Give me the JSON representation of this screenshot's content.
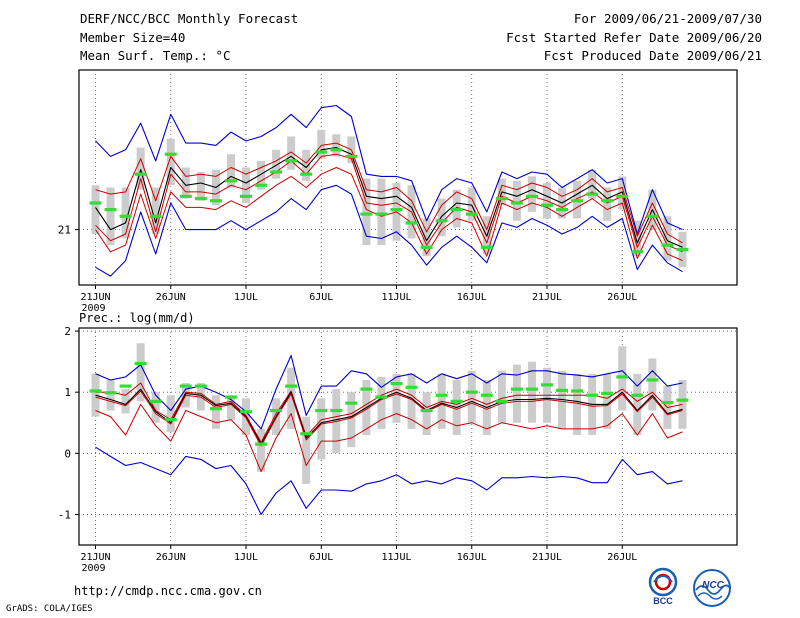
{
  "header": {
    "title": "DERF/NCC/BCC Monthly Forecast",
    "member_size": "Member Size=40",
    "variable": "Mean Surf. Temp.: °C",
    "period": "For 2009/06/21-2009/07/30",
    "start_date": "Fcst Started Refer Date 2009/06/20",
    "produced_date": "Fcst Produced Date 2009/06/21"
  },
  "footer": {
    "url": "http://cmdp.ncc.cma.gov.cn",
    "credit": "GrADS: COLA/IGES",
    "logo_bcc": "BCC",
    "logo_ncc": "NCC"
  },
  "colors": {
    "max_line": "#0000cc",
    "min_line": "#cc0000",
    "mean_line": "#000000",
    "band_lines": "#cc0000",
    "spread_bar": "#cccccc",
    "reference": "#33dd33",
    "grid": "#555555"
  },
  "chart_data": [
    {
      "type": "line",
      "title": "Mean Surf. Temp.: °C",
      "xlabel": "",
      "ylabel": "",
      "x_ticks": [
        "21JUN",
        "26JUN",
        "1JUL",
        "6JUL",
        "11JUL",
        "16JUL",
        "21JUL",
        "26JUL"
      ],
      "x_tick_year": "2009",
      "y_ticks": [
        21
      ],
      "ylim": [
        18.5,
        28.2
      ],
      "x": [
        1,
        2,
        3,
        4,
        5,
        6,
        7,
        8,
        9,
        10,
        11,
        12,
        13,
        14,
        15,
        16,
        17,
        18,
        19,
        20,
        21,
        22,
        23,
        24,
        25,
        26,
        27,
        28,
        29,
        30,
        31,
        32,
        33,
        34,
        35,
        36,
        37,
        38,
        39,
        40
      ],
      "series": [
        {
          "name": "max",
          "values": [
            25.0,
            24.3,
            24.6,
            25.8,
            24.1,
            26.2,
            24.9,
            24.9,
            24.8,
            25.4,
            25.0,
            25.2,
            25.6,
            26.2,
            25.6,
            26.5,
            26.6,
            26.1,
            23.5,
            23.4,
            23.4,
            23.2,
            21.4,
            22.8,
            23.3,
            23.1,
            21.8,
            23.6,
            23.3,
            23.6,
            23.5,
            22.9,
            23.3,
            23.7,
            23.1,
            23.3,
            20.8,
            22.8,
            21.3,
            21.0
          ]
        },
        {
          "name": "band_upper",
          "values": [
            22.8,
            22.6,
            22.7,
            24.2,
            22.3,
            24.3,
            23.4,
            23.5,
            23.4,
            23.8,
            23.5,
            23.8,
            24.1,
            24.5,
            24.0,
            24.8,
            24.9,
            24.6,
            22.8,
            22.7,
            22.9,
            22.3,
            20.9,
            22.1,
            22.7,
            22.4,
            21.0,
            23.0,
            22.8,
            23.1,
            22.9,
            22.5,
            22.8,
            23.3,
            22.7,
            22.9,
            20.7,
            22.2,
            20.8,
            20.4
          ]
        },
        {
          "name": "mean",
          "values": [
            22.0,
            21.0,
            21.3,
            23.7,
            21.3,
            23.8,
            23.0,
            23.1,
            22.9,
            23.4,
            23.1,
            23.5,
            23.9,
            24.3,
            23.8,
            24.6,
            24.7,
            24.4,
            22.5,
            22.4,
            22.5,
            22.0,
            20.5,
            21.6,
            22.2,
            22.1,
            20.7,
            22.7,
            22.5,
            22.8,
            22.5,
            22.2,
            22.6,
            23.0,
            22.4,
            22.7,
            20.4,
            21.9,
            20.5,
            20.2
          ]
        },
        {
          "name": "band_lower",
          "values": [
            21.2,
            20.5,
            20.8,
            23.3,
            20.9,
            23.5,
            22.7,
            22.7,
            22.6,
            23.0,
            22.8,
            23.2,
            23.6,
            24.1,
            23.5,
            24.3,
            24.4,
            24.2,
            22.2,
            22.1,
            22.2,
            21.8,
            20.3,
            21.3,
            22.0,
            21.8,
            20.4,
            22.5,
            22.2,
            22.5,
            22.3,
            22.0,
            22.4,
            22.7,
            22.2,
            22.5,
            20.2,
            21.6,
            20.3,
            20.0
          ]
        },
        {
          "name": "min",
          "values": [
            21.0,
            20.0,
            20.3,
            22.6,
            20.6,
            22.7,
            22.0,
            22.0,
            21.9,
            22.3,
            22.0,
            22.5,
            23.0,
            23.4,
            22.9,
            23.5,
            23.8,
            23.5,
            21.9,
            21.6,
            21.8,
            21.3,
            19.9,
            21.0,
            21.5,
            21.3,
            19.8,
            22.2,
            21.9,
            22.2,
            22.0,
            21.6,
            22.0,
            22.4,
            21.9,
            22.2,
            19.7,
            21.2,
            19.9,
            19.6
          ]
        },
        {
          "name": "min_envelope",
          "values": [
            19.3,
            18.9,
            19.6,
            21.8,
            19.9,
            22.2,
            21.0,
            21.0,
            21.0,
            21.4,
            21.0,
            21.4,
            21.8,
            22.4,
            21.9,
            22.8,
            23.0,
            22.6,
            20.7,
            20.6,
            20.9,
            20.3,
            19.4,
            20.2,
            20.7,
            20.2,
            19.5,
            21.3,
            21.1,
            21.5,
            21.2,
            20.8,
            21.1,
            21.6,
            21.1,
            21.5,
            19.2,
            20.3,
            19.5,
            19.1
          ]
        }
      ],
      "spread": [
        [
          20.8,
          23.0
        ],
        [
          20.3,
          22.9
        ],
        [
          20.6,
          22.9
        ],
        [
          22.8,
          24.7
        ],
        [
          20.8,
          22.9
        ],
        [
          23.0,
          25.1
        ],
        [
          22.4,
          23.8
        ],
        [
          22.3,
          23.6
        ],
        [
          22.1,
          23.7
        ],
        [
          22.9,
          24.4
        ],
        [
          22.2,
          23.8
        ],
        [
          22.8,
          24.1
        ],
        [
          23.3,
          24.6
        ],
        [
          23.7,
          25.2
        ],
        [
          23.2,
          24.6
        ],
        [
          24.2,
          25.5
        ],
        [
          24.3,
          25.3
        ],
        [
          24.0,
          25.2
        ],
        [
          20.3,
          23.3
        ],
        [
          20.3,
          23.3
        ],
        [
          20.5,
          23.1
        ],
        [
          20.6,
          23.0
        ],
        [
          19.8,
          21.5
        ],
        [
          20.7,
          22.4
        ],
        [
          21.1,
          22.8
        ],
        [
          21.4,
          22.9
        ],
        [
          19.9,
          21.6
        ],
        [
          22.1,
          23.3
        ],
        [
          21.4,
          23.2
        ],
        [
          21.8,
          23.4
        ],
        [
          21.5,
          23.1
        ],
        [
          21.5,
          22.9
        ],
        [
          21.5,
          23.2
        ],
        [
          22.4,
          23.7
        ],
        [
          21.4,
          22.9
        ],
        [
          21.9,
          23.4
        ],
        [
          19.8,
          21.4
        ],
        [
          21.0,
          22.8
        ],
        [
          19.6,
          21.6
        ],
        [
          19.3,
          20.9
        ]
      ],
      "reference": [
        22.2,
        21.9,
        21.6,
        23.5,
        21.6,
        24.4,
        22.5,
        22.4,
        22.3,
        23.2,
        22.5,
        23.0,
        23.6,
        24.1,
        23.5,
        24.5,
        24.6,
        24.3,
        21.7,
        21.7,
        21.9,
        21.3,
        20.2,
        21.4,
        21.9,
        21.7,
        20.2,
        22.4,
        22.2,
        22.5,
        22.1,
        21.9,
        22.3,
        22.6,
        22.3,
        22.5,
        20.0,
        21.6,
        20.3,
        20.1
      ]
    },
    {
      "type": "line",
      "title": "Prec.: log(mm/d)",
      "xlabel": "",
      "ylabel": "",
      "x_ticks": [
        "21JUN",
        "26JUN",
        "1JUL",
        "6JUL",
        "11JUL",
        "16JUL",
        "21JUL",
        "26JUL"
      ],
      "x_tick_year": "2009",
      "y_ticks": [
        -1,
        0,
        1,
        2
      ],
      "ylim": [
        -1.5,
        2.05
      ],
      "x": [
        1,
        2,
        3,
        4,
        5,
        6,
        7,
        8,
        9,
        10,
        11,
        12,
        13,
        14,
        15,
        16,
        17,
        18,
        19,
        20,
        21,
        22,
        23,
        24,
        25,
        26,
        27,
        28,
        29,
        30,
        31,
        32,
        33,
        34,
        35,
        36,
        37,
        38,
        39,
        40
      ],
      "series": [
        {
          "name": "max",
          "values": [
            1.3,
            1.2,
            1.25,
            1.45,
            0.95,
            0.7,
            1.05,
            1.1,
            1.0,
            0.88,
            0.68,
            0.4,
            1.05,
            1.6,
            0.62,
            1.1,
            1.1,
            1.35,
            1.3,
            1.08,
            1.25,
            1.3,
            1.15,
            1.3,
            1.22,
            1.3,
            1.15,
            1.3,
            1.28,
            1.35,
            1.35,
            1.3,
            1.28,
            1.25,
            1.3,
            1.35,
            1.1,
            1.35,
            1.1,
            1.15
          ]
        },
        {
          "name": "band_upper",
          "values": [
            1.0,
            1.0,
            0.95,
            1.15,
            0.7,
            0.55,
            1.0,
            0.98,
            0.8,
            0.85,
            0.62,
            0.18,
            0.65,
            1.02,
            0.28,
            0.55,
            0.6,
            0.65,
            0.8,
            0.95,
            1.05,
            0.95,
            0.75,
            0.85,
            0.8,
            0.9,
            0.8,
            0.9,
            0.95,
            0.95,
            0.95,
            0.95,
            0.95,
            0.95,
            0.9,
            1.05,
            0.85,
            1.0,
            0.75,
            0.8
          ]
        },
        {
          "name": "mean",
          "values": [
            0.95,
            0.88,
            0.8,
            1.05,
            0.68,
            0.5,
            0.98,
            0.95,
            0.78,
            0.82,
            0.6,
            0.15,
            0.6,
            1.0,
            0.25,
            0.5,
            0.55,
            0.6,
            0.75,
            0.9,
            1.0,
            0.9,
            0.7,
            0.82,
            0.75,
            0.85,
            0.75,
            0.85,
            0.88,
            0.88,
            0.9,
            0.88,
            0.85,
            0.8,
            0.8,
            1.0,
            0.7,
            0.95,
            0.65,
            0.72
          ]
        },
        {
          "name": "band_lower",
          "values": [
            0.92,
            0.85,
            0.78,
            1.02,
            0.65,
            0.48,
            0.95,
            0.92,
            0.75,
            0.8,
            0.58,
            0.12,
            0.58,
            0.97,
            0.22,
            0.48,
            0.52,
            0.58,
            0.72,
            0.88,
            0.97,
            0.88,
            0.68,
            0.8,
            0.72,
            0.82,
            0.72,
            0.82,
            0.85,
            0.85,
            0.88,
            0.85,
            0.82,
            0.77,
            0.78,
            0.97,
            0.68,
            0.92,
            0.63,
            0.7
          ]
        },
        {
          "name": "min",
          "values": [
            0.7,
            0.6,
            0.3,
            0.8,
            0.45,
            0.2,
            0.7,
            0.6,
            0.5,
            0.55,
            0.3,
            -0.3,
            0.25,
            0.65,
            -0.2,
            0.2,
            0.2,
            0.25,
            0.4,
            0.55,
            0.65,
            0.55,
            0.4,
            0.55,
            0.45,
            0.5,
            0.4,
            0.5,
            0.45,
            0.4,
            0.45,
            0.4,
            0.4,
            0.4,
            0.45,
            0.65,
            0.3,
            0.65,
            0.25,
            0.35
          ]
        },
        {
          "name": "min_envelope",
          "values": [
            0.1,
            -0.05,
            -0.2,
            -0.15,
            -0.25,
            -0.35,
            -0.05,
            -0.1,
            -0.25,
            -0.2,
            -0.5,
            -1.0,
            -0.65,
            -0.45,
            -0.9,
            -0.6,
            -0.6,
            -0.62,
            -0.5,
            -0.45,
            -0.35,
            -0.5,
            -0.45,
            -0.5,
            -0.4,
            -0.45,
            -0.6,
            -0.4,
            -0.4,
            -0.38,
            -0.4,
            -0.38,
            -0.4,
            -0.48,
            -0.48,
            -0.1,
            -0.35,
            -0.3,
            -0.5,
            -0.45
          ]
        }
      ],
      "spread": [
        [
          0.6,
          1.3
        ],
        [
          0.7,
          1.2
        ],
        [
          0.65,
          1.05
        ],
        [
          0.85,
          1.8
        ],
        [
          0.5,
          1.0
        ],
        [
          0.35,
          0.95
        ],
        [
          0.75,
          1.15
        ],
        [
          0.7,
          1.15
        ],
        [
          0.4,
          0.95
        ],
        [
          0.55,
          0.95
        ],
        [
          0.3,
          0.9
        ],
        [
          -0.3,
          0.4
        ],
        [
          0.3,
          0.9
        ],
        [
          0.4,
          1.4
        ],
        [
          -0.5,
          0.6
        ],
        [
          -0.1,
          0.9
        ],
        [
          0.0,
          1.05
        ],
        [
          0.1,
          1.0
        ],
        [
          0.3,
          1.2
        ],
        [
          0.4,
          1.25
        ],
        [
          0.5,
          1.3
        ],
        [
          0.4,
          1.3
        ],
        [
          0.3,
          1.0
        ],
        [
          0.4,
          1.3
        ],
        [
          0.3,
          1.2
        ],
        [
          0.5,
          1.35
        ],
        [
          0.3,
          1.2
        ],
        [
          0.5,
          1.35
        ],
        [
          0.5,
          1.45
        ],
        [
          0.5,
          1.5
        ],
        [
          0.5,
          1.4
        ],
        [
          0.4,
          1.35
        ],
        [
          0.3,
          1.3
        ],
        [
          0.3,
          1.3
        ],
        [
          0.4,
          1.3
        ],
        [
          0.7,
          1.75
        ],
        [
          0.3,
          1.3
        ],
        [
          0.7,
          1.55
        ],
        [
          0.4,
          1.1
        ],
        [
          0.4,
          1.2
        ]
      ],
      "reference": [
        1.02,
        0.99,
        1.1,
        1.47,
        0.85,
        0.55,
        1.1,
        1.1,
        0.73,
        0.92,
        0.68,
        0.15,
        0.7,
        1.1,
        0.32,
        0.7,
        0.7,
        0.82,
        1.05,
        0.92,
        1.14,
        1.08,
        0.7,
        0.95,
        0.85,
        1.0,
        0.95,
        0.85,
        1.05,
        1.05,
        1.12,
        1.03,
        1.02,
        0.95,
        0.98,
        1.25,
        0.95,
        1.2,
        0.83,
        0.87
      ]
    }
  ]
}
